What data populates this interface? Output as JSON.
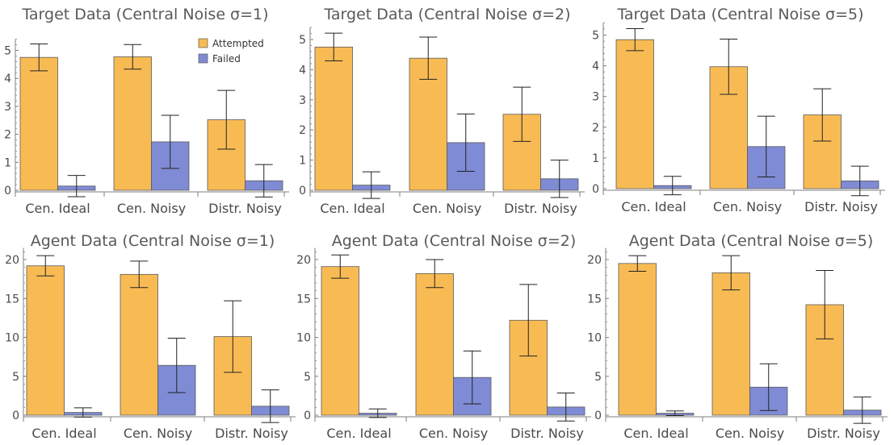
{
  "chart_data": [
    {
      "type": "bar",
      "title": "Target Data (Central Noise σ=1)",
      "categories": [
        "Cen. Ideal",
        "Cen. Noisy",
        "Distr. Noisy"
      ],
      "series": [
        {
          "name": "Attempted",
          "values": [
            4.75,
            4.77,
            2.52
          ],
          "errors": [
            0.48,
            0.44,
            1.05
          ]
        },
        {
          "name": "Failed",
          "values": [
            0.15,
            1.73,
            0.34
          ],
          "errors": [
            0.38,
            0.95,
            0.58
          ]
        }
      ],
      "ylim": [
        0,
        5.4
      ],
      "yticks": [
        0,
        1,
        2,
        3,
        4,
        5
      ],
      "legend": "top-right"
    },
    {
      "type": "bar",
      "title": "Target Data (Central Noise σ=2)",
      "categories": [
        "Cen. Ideal",
        "Cen. Noisy",
        "Distr. Noisy"
      ],
      "series": [
        {
          "name": "Attempted",
          "values": [
            4.75,
            4.38,
            2.52
          ],
          "errors": [
            0.46,
            0.7,
            0.9
          ]
        },
        {
          "name": "Failed",
          "values": [
            0.17,
            1.58,
            0.38
          ],
          "errors": [
            0.44,
            0.95,
            0.62
          ]
        }
      ],
      "ylim": [
        0,
        5.4
      ],
      "yticks": [
        0,
        1,
        2,
        3,
        4,
        5
      ]
    },
    {
      "type": "bar",
      "title": "Target Data (Central Noise σ=5)",
      "categories": [
        "Cen. Ideal",
        "Cen. Noisy",
        "Distr. Noisy"
      ],
      "series": [
        {
          "name": "Attempted",
          "values": [
            4.85,
            3.97,
            2.4
          ],
          "errors": [
            0.36,
            0.9,
            0.85
          ]
        },
        {
          "name": "Failed",
          "values": [
            0.1,
            1.37,
            0.25
          ],
          "errors": [
            0.3,
            0.99,
            0.48
          ]
        }
      ],
      "ylim": [
        0,
        5.4
      ],
      "yticks": [
        0,
        1,
        2,
        3,
        4,
        5
      ]
    },
    {
      "type": "bar",
      "title": "Agent Data (Central Noise σ=1)",
      "categories": [
        "Cen. Ideal",
        "Cen. Noisy",
        "Distr. Noisy"
      ],
      "series": [
        {
          "name": "Attempted",
          "values": [
            19.2,
            18.1,
            10.1
          ],
          "errors": [
            1.3,
            1.7,
            4.6
          ]
        },
        {
          "name": "Failed",
          "values": [
            0.35,
            6.4,
            1.15
          ],
          "errors": [
            0.6,
            3.5,
            2.1
          ]
        }
      ],
      "ylim": [
        0,
        21.5
      ],
      "yticks": [
        0,
        5,
        10,
        15,
        20
      ]
    },
    {
      "type": "bar",
      "title": "Agent Data (Central Noise σ=2)",
      "categories": [
        "Cen. Ideal",
        "Cen. Noisy",
        "Distr. Noisy"
      ],
      "series": [
        {
          "name": "Attempted",
          "values": [
            19.1,
            18.2,
            12.2
          ],
          "errors": [
            1.5,
            1.8,
            4.6
          ]
        },
        {
          "name": "Failed",
          "values": [
            0.25,
            4.85,
            1.05
          ],
          "errors": [
            0.55,
            3.4,
            1.8
          ]
        }
      ],
      "ylim": [
        0,
        21.5
      ],
      "yticks": [
        0,
        5,
        10,
        15,
        20
      ]
    },
    {
      "type": "bar",
      "title": "Agent Data (Central Noise σ=5)",
      "categories": [
        "Cen. Ideal",
        "Cen. Noisy",
        "Distr. Noisy"
      ],
      "series": [
        {
          "name": "Attempted",
          "values": [
            19.5,
            18.3,
            14.2
          ],
          "errors": [
            1.0,
            2.2,
            4.4
          ]
        },
        {
          "name": "Failed",
          "values": [
            0.25,
            3.6,
            0.65
          ],
          "errors": [
            0.3,
            3.0,
            1.7
          ]
        }
      ],
      "ylim": [
        0,
        21.5
      ],
      "yticks": [
        0,
        5,
        10,
        15,
        20
      ]
    }
  ],
  "colors": {
    "attempted": "#f8bb54",
    "failed": "#7f8bd4",
    "bar_stroke": "#5a5a5a",
    "axis": "#7f7f7f"
  }
}
